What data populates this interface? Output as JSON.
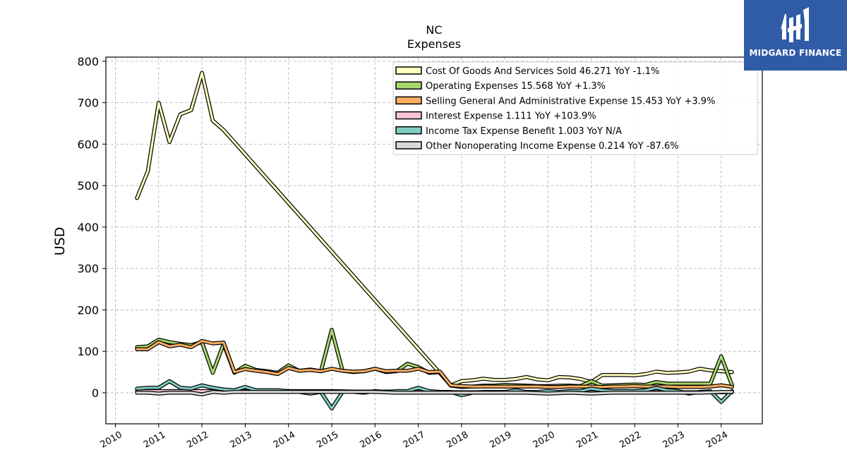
{
  "chart_data": {
    "type": "line",
    "title": "NC",
    "subtitle": "Expenses",
    "ylabel": "USD",
    "xlabel": "",
    "ylim": [
      -75,
      810
    ],
    "xlim": [
      2009.78,
      2024.95
    ],
    "yticks": [
      0,
      100,
      200,
      300,
      400,
      500,
      600,
      700,
      800
    ],
    "xticks": [
      "2010",
      "2011",
      "2012",
      "2013",
      "2014",
      "2015",
      "2016",
      "2017",
      "2018",
      "2019",
      "2020",
      "2021",
      "2022",
      "2023",
      "2024"
    ],
    "grid": true,
    "legend_position": "upper-right",
    "series": [
      {
        "name": "Cost Of Goods And Services Sold",
        "legend_label": "Cost Of Goods And Services Sold  46.271 YoY -1.1%",
        "color": "#ffffbf",
        "x": [
          2010.5,
          2010.75,
          2011.0,
          2011.25,
          2011.5,
          2011.75,
          2012.0,
          2012.25,
          2012.5,
          2017.75,
          2018.0,
          2018.25,
          2018.5,
          2018.75,
          2019.0,
          2019.25,
          2019.5,
          2019.75,
          2020.0,
          2020.25,
          2020.5,
          2020.75,
          2021.0,
          2021.25,
          2021.5,
          2021.75,
          2022.0,
          2022.25,
          2022.5,
          2022.75,
          2023.0,
          2023.25,
          2023.5,
          2023.75,
          2024.0,
          2024.25
        ],
        "values": [
          470,
          535,
          700,
          605,
          672,
          682,
          772,
          657,
          634,
          18,
          28,
          30,
          34,
          31,
          31,
          33,
          38,
          32,
          30,
          38,
          37,
          33,
          26,
          43,
          43,
          43,
          42,
          45,
          51,
          48,
          49,
          51,
          58,
          54,
          52,
          50
        ]
      },
      {
        "name": "Operating Expenses",
        "legend_label": "Operating Expenses  15.568 YoY +1.3%",
        "color": "#a6d96a",
        "x": [
          2010.5,
          2010.75,
          2011.0,
          2011.25,
          2011.5,
          2011.75,
          2012.0,
          2012.25,
          2012.5,
          2012.75,
          2013.0,
          2013.25,
          2013.5,
          2013.75,
          2014.0,
          2014.25,
          2014.5,
          2014.75,
          2015.0,
          2015.25,
          2015.5,
          2015.75,
          2016.0,
          2016.25,
          2016.5,
          2016.75,
          2017.0,
          2017.25,
          2017.5,
          2017.75,
          2018.0,
          2018.25,
          2018.5,
          2018.75,
          2019.0,
          2019.25,
          2019.5,
          2019.75,
          2020.0,
          2020.25,
          2020.5,
          2020.75,
          2021.0,
          2021.25,
          2021.5,
          2021.75,
          2022.0,
          2022.25,
          2022.5,
          2022.75,
          2023.0,
          2023.25,
          2023.5,
          2023.75,
          2024.0,
          2024.25
        ],
        "values": [
          110,
          112,
          128,
          122,
          118,
          115,
          122,
          48,
          118,
          48,
          65,
          55,
          52,
          48,
          66,
          53,
          56,
          52,
          152,
          53,
          50,
          52,
          58,
          50,
          52,
          70,
          62,
          48,
          50,
          17,
          14,
          15,
          17,
          17,
          19,
          18,
          17,
          16,
          16,
          17,
          17,
          16,
          28,
          17,
          18,
          19,
          20,
          19,
          26,
          22,
          22,
          22,
          22,
          22,
          88,
          18
        ]
      },
      {
        "name": "Selling General And Administrative Expense",
        "legend_label": "Selling General And Administrative Expense  15.453 YoY +3.9%",
        "color": "#fdae61",
        "x": [
          2010.5,
          2010.75,
          2011.0,
          2011.25,
          2011.5,
          2011.75,
          2012.0,
          2012.25,
          2012.5,
          2012.75,
          2013.0,
          2013.25,
          2013.5,
          2013.75,
          2014.0,
          2014.25,
          2014.5,
          2014.75,
          2015.0,
          2015.25,
          2015.5,
          2015.75,
          2016.0,
          2016.25,
          2016.5,
          2016.75,
          2017.0,
          2017.25,
          2017.5,
          2017.75,
          2018.0,
          2018.25,
          2018.5,
          2018.75,
          2019.0,
          2019.25,
          2019.5,
          2019.75,
          2020.0,
          2020.25,
          2020.5,
          2020.75,
          2021.0,
          2021.25,
          2021.5,
          2021.75,
          2022.0,
          2022.25,
          2022.5,
          2022.75,
          2023.0,
          2023.25,
          2023.5,
          2023.75,
          2024.0,
          2024.25
        ],
        "values": [
          105,
          105,
          122,
          112,
          116,
          110,
          125,
          119,
          121,
          50,
          57,
          53,
          50,
          45,
          60,
          53,
          55,
          52,
          58,
          53,
          51,
          52,
          58,
          52,
          53,
          53,
          58,
          50,
          51,
          18,
          16,
          15,
          15,
          15,
          15,
          15,
          15,
          15,
          14,
          14,
          15,
          15,
          15,
          14,
          15,
          15,
          16,
          15,
          15,
          15,
          14,
          14,
          14,
          15,
          18,
          14
        ]
      },
      {
        "name": "Interest Expense",
        "legend_label": "Interest Expense  1.111 YoY +103.9%",
        "color": "#f9c6d5",
        "x": [
          2010.5,
          2011.0,
          2011.5,
          2012.0,
          2012.5,
          2013.0,
          2013.5,
          2014.0,
          2014.5,
          2015.0,
          2015.5,
          2016.0,
          2016.5,
          2017.0,
          2017.5,
          2018.0,
          2018.5,
          2019.0,
          2019.5,
          2020.0,
          2020.5,
          2021.0,
          2021.5,
          2022.0,
          2022.5,
          2023.0,
          2023.5,
          2024.0,
          2024.25
        ],
        "values": [
          4,
          4,
          4,
          4,
          4,
          4,
          4,
          4,
          4,
          4,
          3,
          3,
          3,
          3,
          2,
          1,
          1,
          1,
          1,
          1,
          1,
          1,
          1,
          1,
          1,
          1,
          1,
          1,
          1
        ]
      },
      {
        "name": "Income Tax Expense Benefit",
        "legend_label": "Income Tax Expense Benefit  1.003 YoY N/A",
        "color": "#80cdc1",
        "x": [
          2010.5,
          2010.75,
          2011.0,
          2011.25,
          2011.5,
          2011.75,
          2012.0,
          2012.25,
          2012.5,
          2012.75,
          2013.0,
          2013.25,
          2013.5,
          2013.75,
          2014.0,
          2014.25,
          2014.5,
          2014.75,
          2015.0,
          2015.25,
          2015.5,
          2015.75,
          2016.0,
          2016.25,
          2016.5,
          2016.75,
          2017.0,
          2017.25,
          2017.5,
          2017.75,
          2018.0,
          2018.25,
          2018.5,
          2018.75,
          2019.0,
          2019.25,
          2019.5,
          2019.75,
          2020.0,
          2020.25,
          2020.5,
          2020.75,
          2021.0,
          2021.25,
          2021.5,
          2021.75,
          2022.0,
          2022.25,
          2022.5,
          2022.75,
          2023.0,
          2023.25,
          2023.5,
          2023.75,
          2024.0,
          2024.25
        ],
        "values": [
          10,
          12,
          12,
          28,
          12,
          10,
          18,
          12,
          8,
          6,
          14,
          6,
          6,
          6,
          4,
          2,
          -2,
          2,
          -38,
          2,
          2,
          0,
          4,
          2,
          4,
          4,
          12,
          4,
          2,
          2,
          -6,
          0,
          2,
          2,
          2,
          6,
          2,
          2,
          4,
          2,
          4,
          4,
          10,
          6,
          4,
          4,
          4,
          6,
          12,
          6,
          4,
          -2,
          2,
          4,
          -22,
          4
        ]
      },
      {
        "name": "Other Nonoperating Income Expense",
        "legend_label": "Other Nonoperating Income Expense  0.214 YoY -87.6%",
        "color": "#d9d9d9",
        "x": [
          2010.5,
          2010.75,
          2011.0,
          2011.25,
          2011.5,
          2011.75,
          2012.0,
          2012.25,
          2012.5,
          2012.75,
          2013.0,
          2013.5,
          2014.0,
          2014.5,
          2015.0,
          2015.5,
          2016.0,
          2016.5,
          2017.0,
          2017.5,
          2018.0,
          2018.5,
          2019.0,
          2019.5,
          2020.0,
          2020.5,
          2021.0,
          2021.5,
          2022.0,
          2022.5,
          2023.0,
          2023.5,
          2024.0,
          2024.25
        ],
        "values": [
          0,
          0,
          -2,
          0,
          0,
          0,
          -4,
          2,
          0,
          2,
          2,
          2,
          2,
          2,
          2,
          2,
          2,
          0,
          0,
          0,
          0,
          0,
          0,
          0,
          -2,
          0,
          -2,
          0,
          0,
          0,
          0,
          0,
          2,
          2
        ]
      }
    ]
  },
  "brand": {
    "name": "MIDGARD FINANCE",
    "bg_color": "#2f5ba7"
  }
}
